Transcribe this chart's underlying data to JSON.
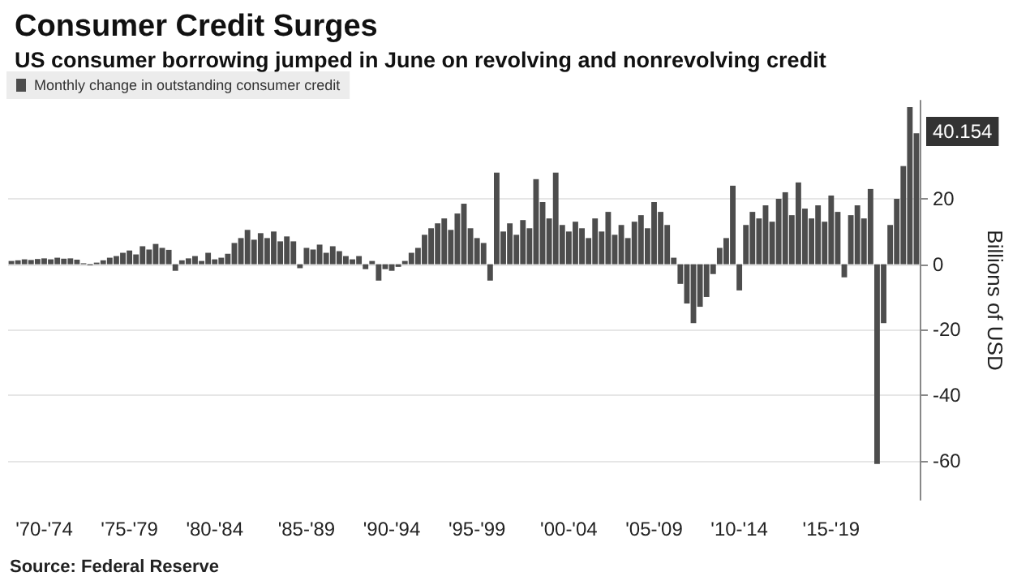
{
  "chart_data": {
    "type": "bar",
    "title": "Consumer Credit Surges",
    "subtitle": "US consumer borrowing jumped in June on revolving and nonrevolving credit",
    "ylabel": "Billions of USD",
    "annotations": [
      "Source: Federal Reserve",
      "40.154"
    ],
    "categories": [
      null,
      null,
      null,
      null,
      null,
      "'70-'74",
      null,
      null,
      null,
      null,
      null,
      null,
      null,
      null,
      null,
      null,
      null,
      null,
      "'75-'79",
      null,
      null,
      null,
      null,
      null,
      null,
      null,
      null,
      null,
      null,
      null,
      null,
      "'80-'84",
      null,
      null,
      null,
      null,
      null,
      null,
      null,
      null,
      null,
      null,
      null,
      null,
      null,
      "'85-'89",
      null,
      null,
      null,
      null,
      null,
      null,
      null,
      null,
      null,
      null,
      null,
      null,
      "'90-'94",
      null,
      null,
      null,
      null,
      null,
      null,
      null,
      null,
      null,
      null,
      null,
      null,
      "'95-'99",
      null,
      null,
      null,
      null,
      null,
      null,
      null,
      null,
      null,
      null,
      null,
      null,
      null,
      "'00-'04",
      null,
      null,
      null,
      null,
      null,
      null,
      null,
      null,
      null,
      null,
      null,
      null,
      "'05-'09",
      null,
      null,
      null,
      null,
      null,
      null,
      null,
      null,
      null,
      null,
      null,
      null,
      "'10-'14",
      null,
      null,
      null,
      null,
      null,
      null,
      null,
      null,
      null,
      null,
      null,
      null,
      null,
      "'15-'19",
      null,
      null,
      null,
      null,
      null,
      null,
      null,
      null,
      null,
      null,
      null,
      null,
      null
    ],
    "series": [
      {
        "name": "Monthly change in outstanding consumer credit",
        "color": "#4d4d4d",
        "values": [
          1.0,
          1.2,
          1.5,
          1.3,
          1.6,
          1.8,
          1.5,
          2.0,
          1.7,
          1.8,
          1.4,
          0.3,
          -0.3,
          0.5,
          1.2,
          2.0,
          2.5,
          3.5,
          4.2,
          3.0,
          5.5,
          4.5,
          6.2,
          5.0,
          4.4,
          -2.0,
          1.2,
          1.8,
          2.5,
          1.0,
          3.5,
          1.5,
          2.0,
          3.2,
          6.5,
          8.0,
          10.5,
          7.5,
          9.5,
          8.0,
          10.0,
          7.0,
          8.5,
          7.0,
          -1.2,
          5.0,
          4.5,
          6.0,
          3.5,
          5.5,
          4.0,
          2.5,
          1.5,
          2.5,
          -1.5,
          1.0,
          -5.0,
          -1.5,
          -2.0,
          -0.8,
          1.0,
          3.5,
          5.0,
          9.0,
          11.0,
          12.5,
          14.0,
          10.5,
          15.5,
          18.5,
          11.0,
          8.0,
          6.5,
          -5.0,
          28.0,
          10.0,
          12.5,
          9.0,
          13.5,
          11.0,
          26.0,
          19.0,
          14.0,
          28.0,
          12.0,
          10.0,
          13,
          11,
          8,
          14,
          10,
          16,
          9,
          12,
          8,
          13,
          15,
          11,
          19,
          16,
          12,
          2,
          -6,
          -12,
          -18,
          -13,
          -10,
          -3,
          5,
          8,
          24,
          -8,
          12,
          16,
          14,
          18,
          13,
          20,
          22,
          15,
          25,
          17,
          14,
          18,
          13,
          21,
          16,
          -4,
          15,
          18,
          14,
          23,
          -61,
          -18,
          12,
          20,
          30,
          48,
          40
        ]
      }
    ],
    "ylim": [
      -72,
      50
    ],
    "yticks": [
      -60,
      -40,
      -20,
      0,
      20
    ],
    "grid": "y",
    "legend": "top left"
  }
}
